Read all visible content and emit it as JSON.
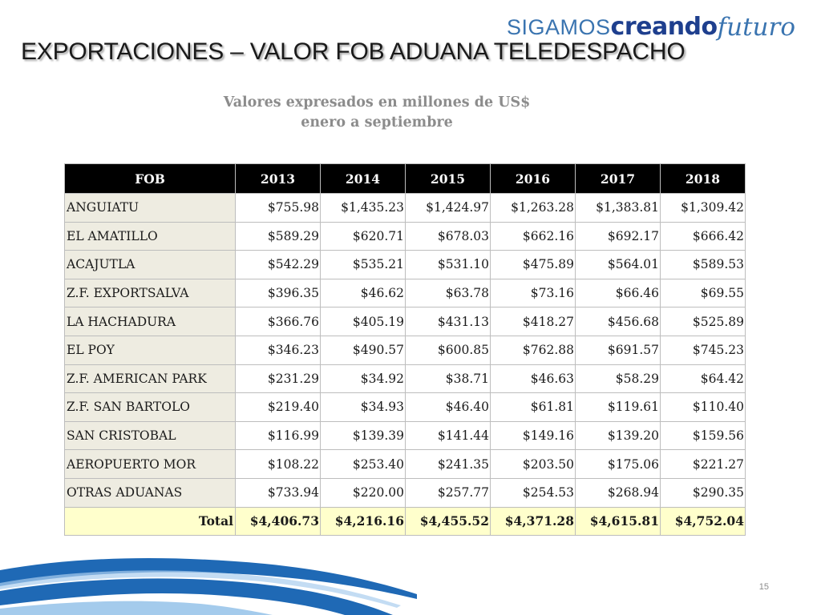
{
  "logo": {
    "part1": "SIGAMOS",
    "part2": "creando",
    "part3": "futuro"
  },
  "title": "EXPORTACIONES – VALOR FOB ADUANA TELEDESPACHO",
  "subtitle": {
    "line1": "Valores expresados en millones de US$",
    "line2": "enero a septiembre"
  },
  "table": {
    "headers": [
      "FOB",
      "2013",
      "2014",
      "2015",
      "2016",
      "2017",
      "2018"
    ],
    "rows": [
      {
        "name": "ANGUIATU",
        "values": [
          "$755.98",
          "$1,435.23",
          "$1,424.97",
          "$1,263.28",
          "$1,383.81",
          "$1,309.42"
        ]
      },
      {
        "name": "EL AMATILLO",
        "values": [
          "$589.29",
          "$620.71",
          "$678.03",
          "$662.16",
          "$692.17",
          "$666.42"
        ]
      },
      {
        "name": "ACAJUTLA",
        "values": [
          "$542.29",
          "$535.21",
          "$531.10",
          "$475.89",
          "$564.01",
          "$589.53"
        ]
      },
      {
        "name": "Z.F. EXPORTSALVA",
        "values": [
          "$396.35",
          "$46.62",
          "$63.78",
          "$73.16",
          "$66.46",
          "$69.55"
        ]
      },
      {
        "name": "LA HACHADURA",
        "values": [
          "$366.76",
          "$405.19",
          "$431.13",
          "$418.27",
          "$456.68",
          "$525.89"
        ]
      },
      {
        "name": "EL POY",
        "values": [
          "$346.23",
          "$490.57",
          "$600.85",
          "$762.88",
          "$691.57",
          "$745.23"
        ]
      },
      {
        "name": "Z.F. AMERICAN PARK",
        "values": [
          "$231.29",
          "$34.92",
          "$38.71",
          "$46.63",
          "$58.29",
          "$64.42"
        ]
      },
      {
        "name": "Z.F. SAN BARTOLO",
        "values": [
          "$219.40",
          "$34.93",
          "$46.40",
          "$61.81",
          "$119.61",
          "$110.40"
        ]
      },
      {
        "name": "SAN CRISTOBAL",
        "values": [
          "$116.99",
          "$139.39",
          "$141.44",
          "$149.16",
          "$139.20",
          "$159.56"
        ]
      },
      {
        "name": "AEROPUERTO MOR",
        "values": [
          "$108.22",
          "$253.40",
          "$241.35",
          "$203.50",
          "$175.06",
          "$221.27"
        ]
      },
      {
        "name": "OTRAS ADUANAS",
        "values": [
          "$733.94",
          "$220.00",
          "$257.77",
          "$254.53",
          "$268.94",
          "$290.35"
        ]
      }
    ],
    "total": {
      "name": "Total",
      "values": [
        "$4,406.73",
        "$4,216.16",
        "$4,455.52",
        "$4,371.28",
        "$4,615.81",
        "$4,752.04"
      ]
    }
  },
  "page_number": "15",
  "colors": {
    "header_bg": "#000000",
    "name_col_bg": "#eeece1",
    "total_bg": "#ffffcc",
    "logo_light_blue": "#3a74b0",
    "logo_dark_blue": "#1e3f8e",
    "swoosh_blue": "#1f69b5"
  }
}
